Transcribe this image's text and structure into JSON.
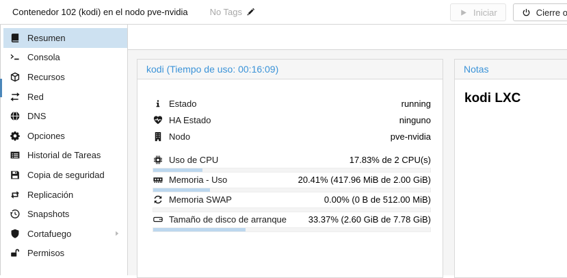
{
  "header": {
    "title": "Contenedor 102 (kodi) en el nodo pve-nvidia",
    "tags_label": "No Tags",
    "buttons": [
      {
        "label": "Iniciar",
        "icon": "play-icon",
        "disabled": true
      },
      {
        "label": "Cierre ordenado",
        "icon": "power-icon",
        "disabled": false
      }
    ]
  },
  "sidebar": {
    "items": [
      {
        "label": "Resumen",
        "icon": "book-icon",
        "selected": true
      },
      {
        "label": "Consola",
        "icon": "terminal-icon"
      },
      {
        "label": "Recursos",
        "icon": "cube-icon"
      },
      {
        "label": "Red",
        "icon": "network-icon"
      },
      {
        "label": "DNS",
        "icon": "globe-icon"
      },
      {
        "label": "Opciones",
        "icon": "gear-icon"
      },
      {
        "label": "Historial de Tareas",
        "icon": "tasks-icon"
      },
      {
        "label": "Copia de seguridad",
        "icon": "floppy-icon"
      },
      {
        "label": "Replicación",
        "icon": "replication-icon"
      },
      {
        "label": "Snapshots",
        "icon": "history-icon"
      },
      {
        "label": "Cortafuego",
        "icon": "shield-icon",
        "submenu": true
      },
      {
        "label": "Permisos",
        "icon": "unlock-icon"
      }
    ]
  },
  "status_panel": {
    "title": "kodi (Tiempo de uso: 00:16:09)",
    "rows": [
      {
        "icon": "info-icon",
        "label": "Estado",
        "value": "running"
      },
      {
        "icon": "heartbeat-icon",
        "label": "HA Estado",
        "value": "ninguno"
      },
      {
        "icon": "building-icon",
        "label": "Nodo",
        "value": "pve-nvidia"
      },
      {
        "icon": "cpu-icon",
        "label": "Uso de CPU",
        "value": "17.83% de 2 CPU(s)",
        "progress": 0.1783
      },
      {
        "icon": "memory-icon",
        "label": "Memoria - Uso",
        "value": "20.41% (417.96 MiB de 2.00 GiB)",
        "progress": 0.2041
      },
      {
        "icon": "swap-icon",
        "label": "Memoria SWAP",
        "value": "0.00% (0 B de 512.00 MiB)",
        "progress": 0.0
      },
      {
        "icon": "disk-icon",
        "label": "Tamaño de disco de arranque",
        "value": "33.37% (2.60 GiB de 7.78 GiB)",
        "progress": 0.3337
      }
    ]
  },
  "notes_panel": {
    "title": "Notas",
    "content": "kodi LXC"
  },
  "colors": {
    "accent_blue": "#3b93d8",
    "selected_item_bg": "#cde1f1",
    "progress_fill": "#bcd7ee",
    "tree_strip": "#4b86b9",
    "border": "#d5d5d5",
    "workspace_bg": "#f5f5f5",
    "muted_text": "#a9a9a9"
  }
}
